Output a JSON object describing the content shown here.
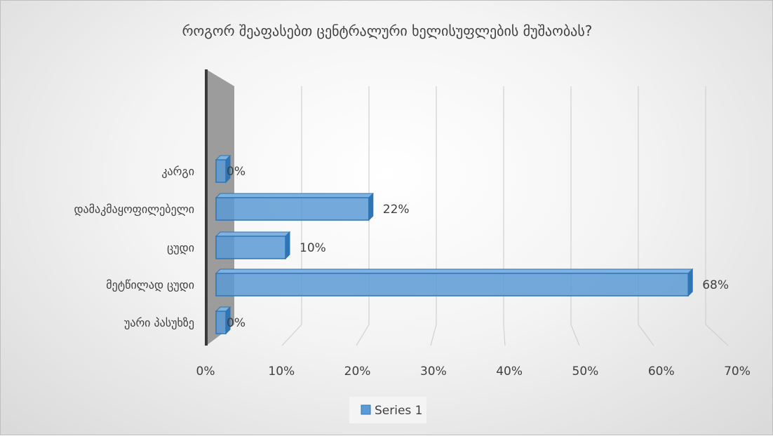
{
  "chart_data": {
    "type": "bar",
    "orientation": "horizontal",
    "style": "3d",
    "title": "როგორ შეაფასებთ ცენტრალური  ხელისუფლების მუშაობას?",
    "categories": [
      "კარგი",
      "დამაკმაყოფილებელი",
      "ცუდი",
      "მეტწილად ცუდი",
      "უარი პასუხზე"
    ],
    "series": [
      {
        "name": "Series 1",
        "values": [
          0,
          22,
          10,
          68,
          0
        ]
      }
    ],
    "data_labels": [
      "0%",
      "22%",
      "10%",
      "68%",
      "0%"
    ],
    "x_ticks": [
      "0%",
      "10%",
      "20%",
      "30%",
      "40%",
      "50%",
      "60%",
      "70%"
    ],
    "xlim": [
      0,
      70
    ],
    "grid": true,
    "legend_position": "bottom",
    "colors": {
      "bar": "#5b9bd5",
      "bar_dark": "#2e75b6",
      "wall": "#8c8c8c",
      "grid": "#d0d0d0",
      "text": "#404040"
    }
  }
}
